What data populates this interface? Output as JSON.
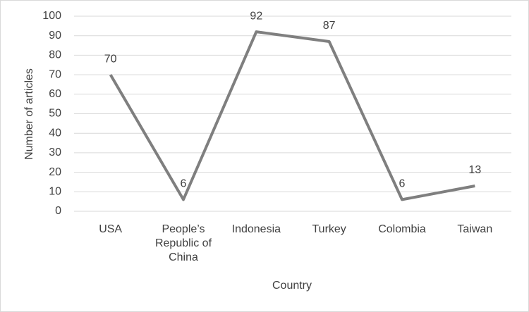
{
  "chart_data": {
    "type": "line",
    "x_label": "Country",
    "y_label": "Number of articles",
    "categories": [
      "USA",
      "People’s Republic of China",
      "Indonesia",
      "Turkey",
      "Colombia",
      "Taiwan"
    ],
    "values": [
      70,
      6,
      92,
      87,
      6,
      13
    ],
    "color": "#7f7f7f",
    "ylim": [
      0,
      100
    ],
    "yticks": [
      0,
      10,
      20,
      30,
      40,
      50,
      60,
      70,
      80,
      90,
      100
    ],
    "grid": true
  }
}
